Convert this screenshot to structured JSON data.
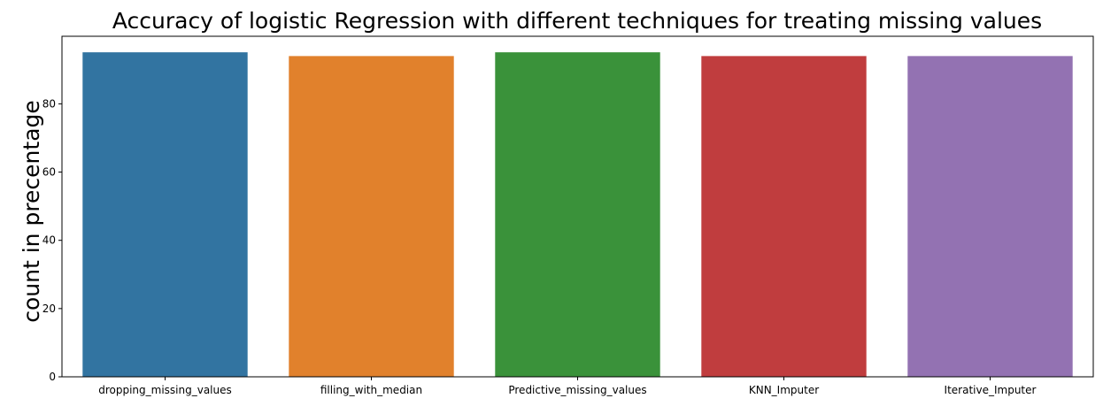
{
  "chart_data": {
    "type": "bar",
    "title": "Accuracy of logistic Regression with different techniques for treating missing values",
    "xlabel": "",
    "ylabel": "count in precentage",
    "categories": [
      "dropping_missing_values",
      "filling_with_median",
      "Predictive_missing_values",
      "KNN_Imputer",
      "Iterative_Imputer"
    ],
    "values": [
      95.1,
      94.0,
      95.1,
      94.0,
      94.0
    ],
    "colors": [
      "#3274a1",
      "#e1812c",
      "#3a923a",
      "#c03d3e",
      "#9372b2"
    ],
    "yticks": [
      0,
      20,
      40,
      60,
      80
    ],
    "ylim": [
      0,
      99.8
    ],
    "grid": false
  }
}
